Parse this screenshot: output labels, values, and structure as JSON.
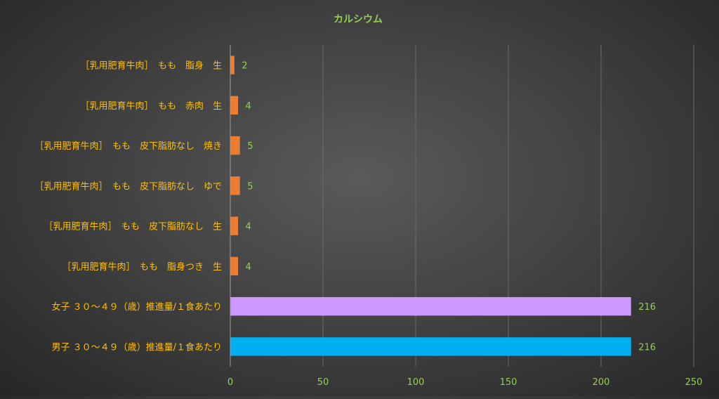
{
  "chart_data": {
    "type": "bar",
    "orientation": "horizontal",
    "title": "カルシウム",
    "categories": [
      "［乳用肥育牛肉］　もも　脂身　生",
      "［乳用肥育牛肉］　もも　赤肉　生",
      "［乳用肥育牛肉］　もも　皮下脂肪なし　焼き",
      "［乳用肥育牛肉］　もも　皮下脂肪なし　ゆで",
      "［乳用肥育牛肉］　もも　皮下脂肪なし　生",
      "［乳用肥育牛肉］　もも　脂身つき　生",
      "女子 ３０～４９（歳）推進量/１食あたり",
      "男子 ３０～４９（歳）推進量/１食あたり"
    ],
    "values": [
      2,
      4,
      5,
      5,
      4,
      4,
      216,
      216
    ],
    "data_labels": [
      "2",
      "4",
      "5",
      "5",
      "4",
      "4",
      "216",
      "216"
    ],
    "bar_colors": [
      "#ed7d31",
      "#ed7d31",
      "#ed7d31",
      "#ed7d31",
      "#ed7d31",
      "#ed7d31",
      "#cc99ff",
      "#00b0f0"
    ],
    "xlim": [
      0,
      250
    ],
    "xticks": [
      0,
      50,
      100,
      150,
      200,
      250
    ],
    "xtick_labels": [
      "0",
      "50",
      "100",
      "150",
      "200",
      "250"
    ],
    "grid": "vertical",
    "legend": "none",
    "colors": {
      "title": "#92d050",
      "category_label": "#ffc000",
      "data_label": "#92d050",
      "tick_label": "#92d050",
      "grid": "#6a6a6a",
      "axis": "#9a9a9a"
    }
  }
}
